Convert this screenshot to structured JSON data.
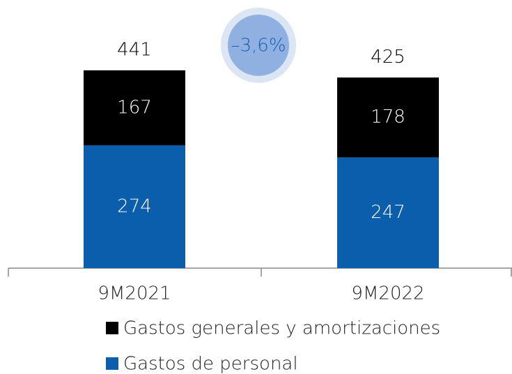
{
  "chart_data": {
    "type": "stacked_bar",
    "categories": [
      "9M2021",
      "9M2022"
    ],
    "series": [
      {
        "name": "Gastos de personal",
        "color": "#0a5eab",
        "values": [
          274,
          247
        ]
      },
      {
        "name": "Gastos generales y amortizaciones",
        "color": "#000000",
        "values": [
          167,
          178
        ]
      }
    ],
    "totals": [
      441,
      425
    ],
    "annotation": "–3,6%"
  }
}
